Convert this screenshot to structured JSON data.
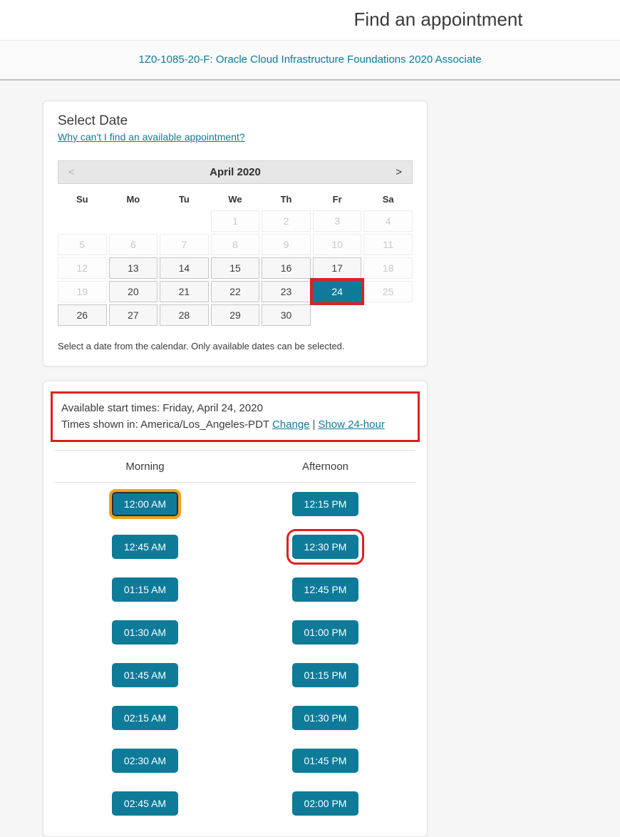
{
  "colors": {
    "teal": "#0e7b99",
    "annotation_red": "#e02020",
    "focus_orange": "#efa11c"
  },
  "header": {
    "title": "Find an appointment"
  },
  "banner": {
    "exam": "1Z0-1085-20-F: Oracle Cloud Infrastructure Foundations 2020 Associate"
  },
  "select_date": {
    "heading": "Select Date",
    "help_link": "Why can't I find an available appointment?",
    "month_label": "April 2020",
    "prev": "<",
    "next": ">",
    "day_headers": [
      "Su",
      "Mo",
      "Tu",
      "We",
      "Th",
      "Fr",
      "Sa"
    ],
    "selected_day": "24",
    "weeks": [
      [
        {
          "day": "",
          "state": "blank"
        },
        {
          "day": "",
          "state": "blank"
        },
        {
          "day": "",
          "state": "blank"
        },
        {
          "day": "1",
          "state": "disabled"
        },
        {
          "day": "2",
          "state": "disabled"
        },
        {
          "day": "3",
          "state": "disabled"
        },
        {
          "day": "4",
          "state": "disabled"
        }
      ],
      [
        {
          "day": "5",
          "state": "disabled"
        },
        {
          "day": "6",
          "state": "disabled"
        },
        {
          "day": "7",
          "state": "disabled"
        },
        {
          "day": "8",
          "state": "disabled"
        },
        {
          "day": "9",
          "state": "disabled"
        },
        {
          "day": "10",
          "state": "disabled"
        },
        {
          "day": "11",
          "state": "disabled"
        }
      ],
      [
        {
          "day": "12",
          "state": "disabled"
        },
        {
          "day": "13",
          "state": "enabled"
        },
        {
          "day": "14",
          "state": "enabled"
        },
        {
          "day": "15",
          "state": "enabled"
        },
        {
          "day": "16",
          "state": "enabled"
        },
        {
          "day": "17",
          "state": "enabled"
        },
        {
          "day": "18",
          "state": "disabled"
        }
      ],
      [
        {
          "day": "19",
          "state": "disabled"
        },
        {
          "day": "20",
          "state": "enabled"
        },
        {
          "day": "21",
          "state": "enabled"
        },
        {
          "day": "22",
          "state": "enabled"
        },
        {
          "day": "23",
          "state": "enabled"
        },
        {
          "day": "24",
          "state": "selected"
        },
        {
          "day": "25",
          "state": "disabled"
        }
      ],
      [
        {
          "day": "26",
          "state": "enabled"
        },
        {
          "day": "27",
          "state": "enabled"
        },
        {
          "day": "28",
          "state": "enabled"
        },
        {
          "day": "29",
          "state": "enabled"
        },
        {
          "day": "30",
          "state": "enabled"
        },
        {
          "day": "",
          "state": "blank"
        },
        {
          "day": "",
          "state": "blank"
        }
      ]
    ],
    "footnote": "Select a date from the calendar. Only available dates can be selected."
  },
  "available_times": {
    "line1": "Available start times: Friday, April 24, 2020",
    "line2_prefix": "Times shown in: America/Los_Angeles-PDT",
    "change_link": "Change",
    "separator": "|",
    "toggle_link": "Show 24-hour",
    "focused_slot": "12:00 AM",
    "annotated_slot": "12:30 PM",
    "columns": [
      {
        "label": "Morning",
        "slots": [
          "12:00 AM",
          "12:45 AM",
          "01:15 AM",
          "01:30 AM",
          "01:45 AM",
          "02:15 AM",
          "02:30 AM",
          "02:45 AM"
        ]
      },
      {
        "label": "Afternoon",
        "slots": [
          "12:15 PM",
          "12:30 PM",
          "12:45 PM",
          "01:00 PM",
          "01:15 PM",
          "01:30 PM",
          "01:45 PM",
          "02:00 PM"
        ]
      }
    ]
  }
}
